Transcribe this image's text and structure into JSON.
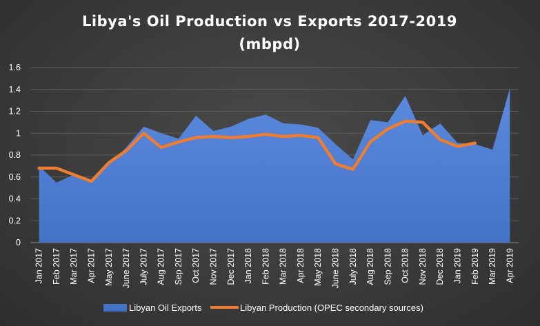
{
  "chart_data": {
    "type": "area",
    "title": [
      "Libya's Oil Production vs Exports 2017-2019",
      "(mbpd)"
    ],
    "xlabel": "",
    "ylabel": "",
    "ylim": [
      0,
      1.6
    ],
    "yticks": [
      "0",
      "0.2",
      "0.4",
      "0.6",
      "0.8",
      "1",
      "1.2",
      "1.4",
      "1.6"
    ],
    "ytick_values": [
      0,
      0.2,
      0.4,
      0.6,
      0.8,
      1,
      1.2,
      1.4,
      1.6
    ],
    "grid": true,
    "legend_position": "bottom",
    "categories": [
      "Jan 2017",
      "Feb 2017",
      "Mar 2017",
      "Apr 2017",
      "May 2017",
      "June 2017",
      "July 2017",
      "Aug 2017",
      "Sep 2017",
      "Oct 2017",
      "Nov 2017",
      "Dec 2017",
      "Jan 2018",
      "Feb 2018",
      "Mar 2018",
      "Apr 2018",
      "May 2018",
      "June 2018",
      "July 2018",
      "Aug 2018",
      "Sep 2018",
      "Oct 2018",
      "Nov 2018",
      "Dec 2018",
      "Jan 2019",
      "Feb 2019",
      "Mar 2019",
      "Apr 2019"
    ],
    "series": [
      {
        "name": "Libyan Oil Exports",
        "type": "area",
        "color": "#4472c4",
        "values": [
          0.7,
          0.55,
          0.62,
          0.57,
          0.71,
          0.87,
          1.06,
          1.0,
          0.95,
          1.16,
          1.02,
          1.06,
          1.13,
          1.17,
          1.09,
          1.08,
          1.05,
          0.9,
          0.76,
          1.12,
          1.1,
          1.34,
          0.98,
          1.09,
          0.91,
          0.9,
          0.85,
          1.41
        ]
      },
      {
        "name": "Libyan Production (OPEC secondary sources)",
        "type": "line",
        "color": "#ed7d31",
        "values": [
          0.68,
          0.68,
          0.62,
          0.56,
          0.73,
          0.84,
          1.0,
          0.87,
          0.92,
          0.96,
          0.97,
          0.96,
          0.97,
          0.99,
          0.97,
          0.98,
          0.96,
          0.72,
          0.67,
          0.92,
          1.04,
          1.11,
          1.1,
          0.94,
          0.88,
          0.91,
          null,
          null
        ]
      }
    ]
  }
}
